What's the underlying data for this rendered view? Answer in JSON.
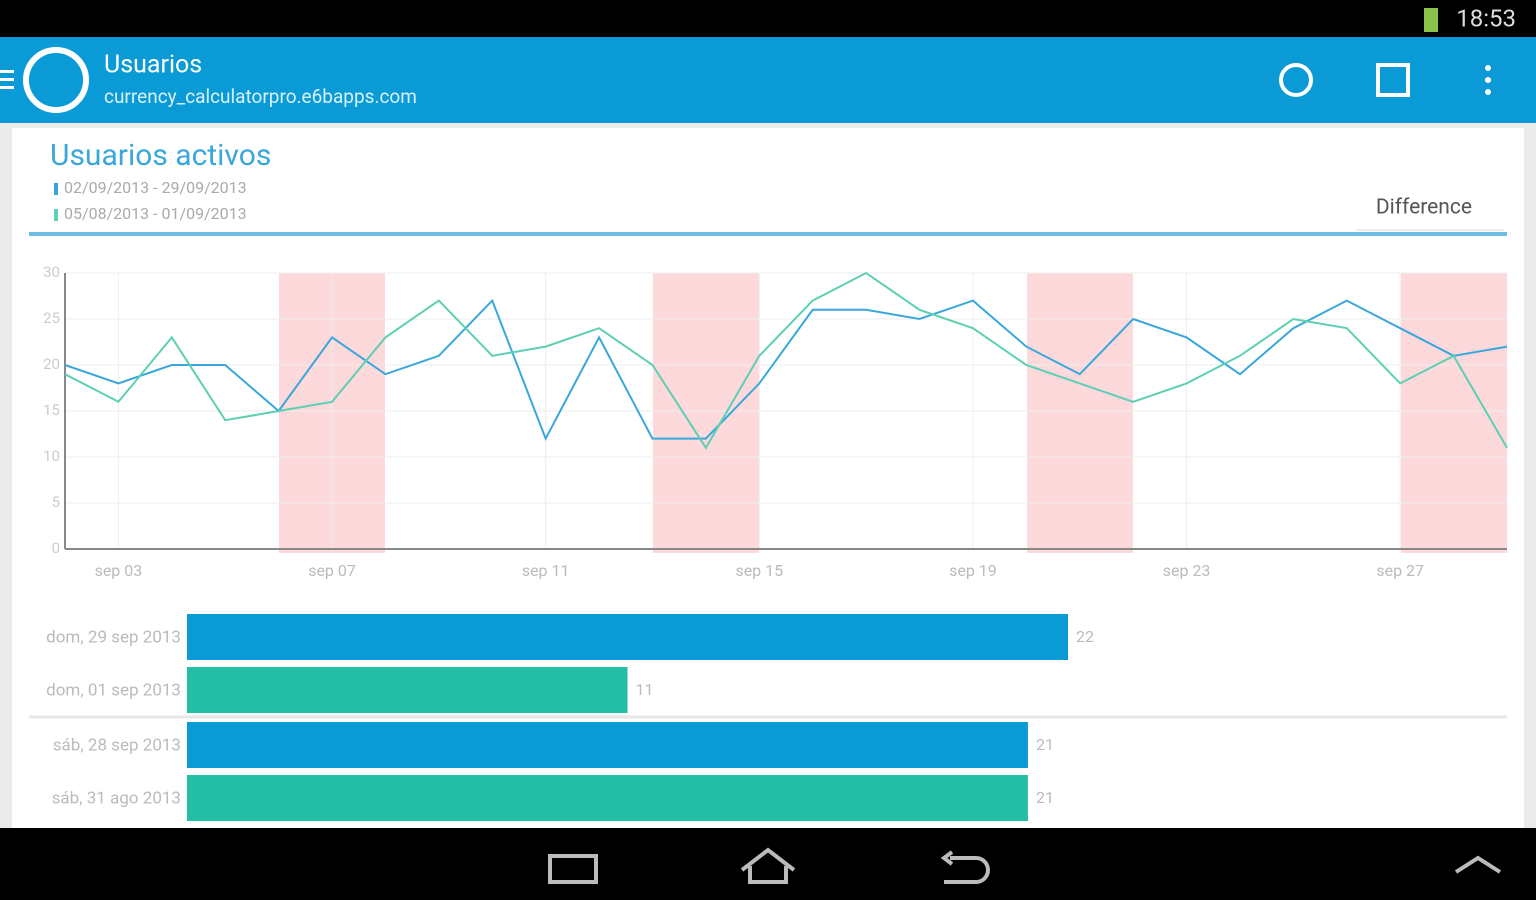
{
  "status_bar": {
    "time": "18:53"
  },
  "app_bar": {
    "title": "Usuarios",
    "subtitle": "currency_calculatorpro.e6bapps.com"
  },
  "card": {
    "mode": "Difference"
  },
  "chart_data": [
    {
      "type": "line",
      "title": "Usuarios activos",
      "categories": [
        null,
        "sep 03",
        null,
        null,
        null,
        "sep 07",
        null,
        null,
        null,
        "sep 11",
        null,
        null,
        null,
        "sep 15",
        null,
        null,
        null,
        "sep 19",
        null,
        null,
        null,
        "sep 23",
        null,
        null,
        null,
        "sep 27",
        null,
        null
      ],
      "series": [
        {
          "name": "02/09/2013 - 29/09/2013",
          "color": "#3aa7db",
          "values": [
            20,
            18,
            20,
            20,
            15,
            23,
            19,
            21,
            27,
            12,
            23,
            12,
            12,
            18,
            26,
            26,
            25,
            27,
            22,
            19,
            25,
            23,
            19,
            24,
            27,
            24,
            21,
            22
          ]
        },
        {
          "name": "05/08/2013 - 01/09/2013",
          "color": "#5dcfb3",
          "values": [
            19,
            16,
            23,
            14,
            15,
            16,
            23,
            27,
            21,
            22,
            24,
            20,
            11,
            21,
            27,
            30,
            26,
            24,
            20,
            18,
            16,
            18,
            21,
            25,
            24,
            18,
            21,
            11
          ]
        }
      ],
      "ylim": [
        0,
        30
      ],
      "yticks": [
        0,
        5,
        10,
        15,
        20,
        25,
        30
      ],
      "grid": true
    },
    {
      "type": "hbar",
      "categories": [
        "dom, 29 sep 2013",
        "dom, 01 sep 2013",
        "sáb, 28 sep 2013",
        "sáb, 31 ago 2013"
      ],
      "values": [
        22,
        11,
        21,
        21
      ],
      "colors": [
        "#0a9bd6",
        "#22bfa6",
        "#0a9bd6",
        "#22bfa6"
      ]
    }
  ]
}
